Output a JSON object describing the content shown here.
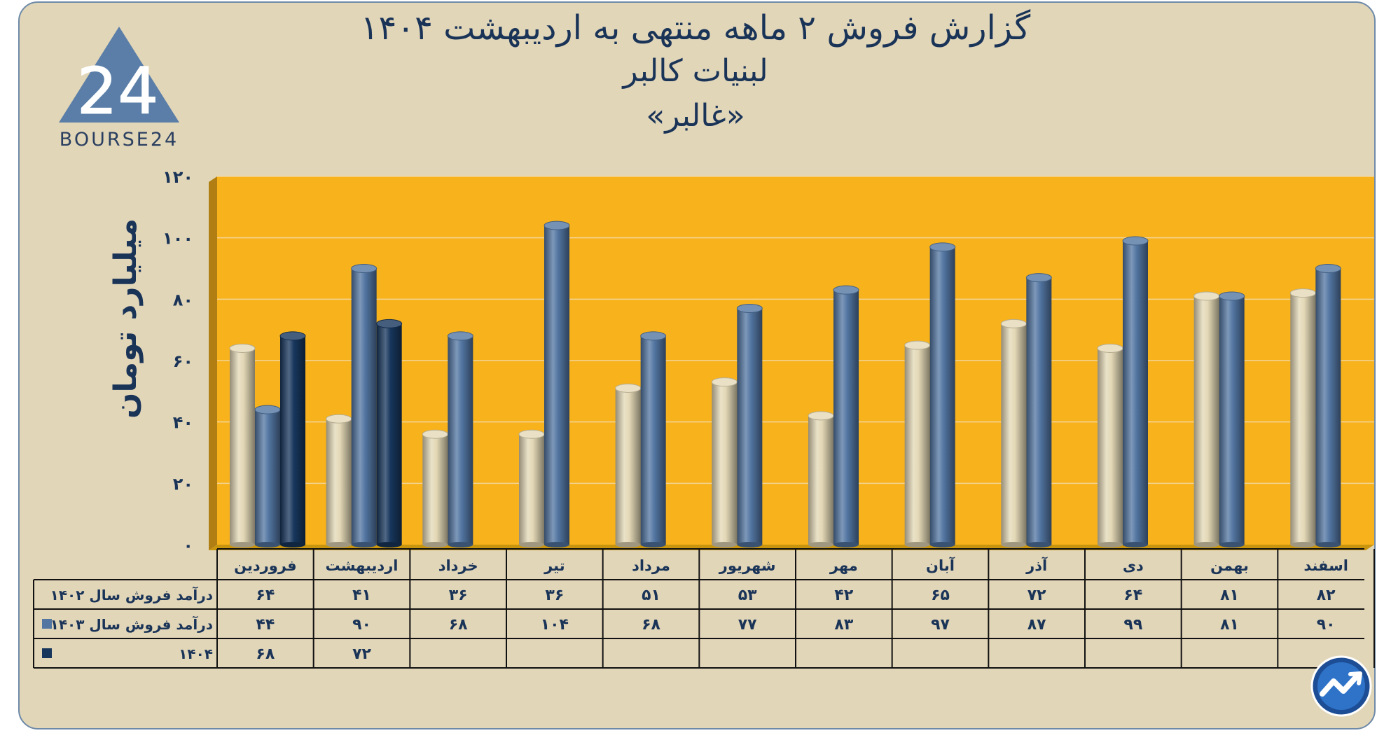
{
  "title": {
    "line1": "گزارش  فروش ۲ ماهه منتهی به اردیبهشت ۱۴۰۴",
    "line2": "لبنیات کالبر",
    "line3": "«غالبر»"
  },
  "logo": {
    "text": "BOURSE24",
    "mark": "24"
  },
  "colors": {
    "background": "#e2d6b9",
    "plot": "#f7b21c",
    "s1402": "#e3d8b6",
    "s1403": "#5275a1",
    "s1404": "#17365c",
    "text": "#1a3458"
  },
  "chart_data": {
    "type": "bar",
    "title": "گزارش  فروش ۲ ماهه منتهی به اردیبهشت ۱۴۰۴",
    "ylabel": "میلیارد تومان",
    "ylim": [
      0,
      120
    ],
    "yticks": [
      0,
      20,
      40,
      60,
      80,
      100,
      120
    ],
    "ytick_labels": [
      "۰",
      "۲۰",
      "۴۰",
      "۶۰",
      "۸۰",
      "۱۰۰",
      "۱۲۰"
    ],
    "categories": [
      "فروردین",
      "اردیبهشت",
      "خرداد",
      "تیر",
      "مرداد",
      "شهریور",
      "مهر",
      "آبان",
      "آذر",
      "دی",
      "بهمن",
      "اسفند"
    ],
    "series": [
      {
        "name": "درآمد فروش سال ۱۴۰۲",
        "values": [
          64,
          41,
          36,
          36,
          51,
          53,
          42,
          65,
          72,
          64,
          81,
          82
        ],
        "labels": [
          "۶۴",
          "۴۱",
          "۳۶",
          "۳۶",
          "۵۱",
          "۵۳",
          "۴۲",
          "۶۵",
          "۷۲",
          "۶۴",
          "۸۱",
          "۸۲"
        ],
        "color": "#e3d8b6",
        "swatch": false
      },
      {
        "name": "درآمد فروش سال ۱۴۰۳",
        "values": [
          44,
          90,
          68,
          104,
          68,
          77,
          83,
          97,
          87,
          99,
          81,
          90
        ],
        "labels": [
          "۴۴",
          "۹۰",
          "۶۸",
          "۱۰۴",
          "۶۸",
          "۷۷",
          "۸۳",
          "۹۷",
          "۸۷",
          "۹۹",
          "۸۱",
          "۹۰"
        ],
        "color": "#5275a1",
        "swatch": true
      },
      {
        "name": "۱۴۰۴",
        "values": [
          68,
          72,
          null,
          null,
          null,
          null,
          null,
          null,
          null,
          null,
          null,
          null
        ],
        "labels": [
          "۶۸",
          "۷۲",
          "",
          "",
          "",
          "",
          "",
          "",
          "",
          "",
          "",
          ""
        ],
        "color": "#17365c",
        "swatch": true
      }
    ]
  }
}
